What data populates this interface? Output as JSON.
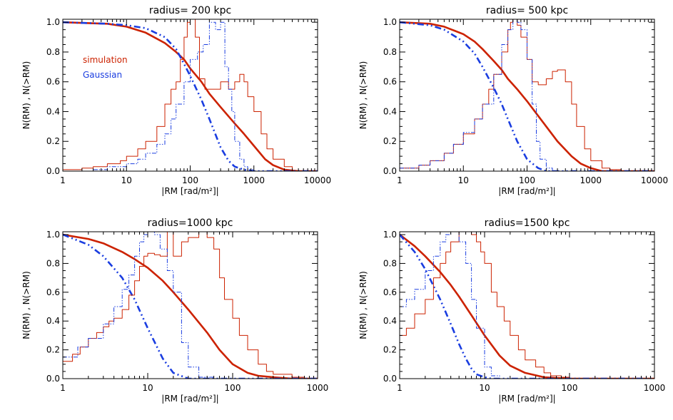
{
  "colors": {
    "simulation": "#cc2200",
    "gaussian": "#1a3de0",
    "axis": "#000000"
  },
  "legend": {
    "simulation": "simulation",
    "gaussian": "Gaussian"
  },
  "chart_data": [
    {
      "type": "line",
      "title": "radius= 200 kpc",
      "xlabel": "|RM [rad/m²]|",
      "ylabel": "N(RM) , N(>RM)",
      "xscale": "log",
      "xlim": [
        1,
        10000
      ],
      "ylim": [
        0,
        1.02
      ],
      "xticks": [
        1,
        10,
        100,
        1000,
        10000
      ],
      "xtick_labels": [
        "1",
        "10",
        "100",
        "1000",
        "10000"
      ],
      "yticks": [
        0,
        0.2,
        0.4,
        0.6,
        0.8,
        1.0
      ],
      "ytick_labels": [
        "0.0",
        "0.2",
        "0.4",
        "0.6",
        "0.8",
        "1.0"
      ],
      "legend_position": "left",
      "series": [
        {
          "name": "simulation cumulative",
          "style": "solid-thick",
          "color": "simulation",
          "x": [
            1,
            5,
            10,
            20,
            40,
            60,
            80,
            100,
            150,
            200,
            300,
            500,
            700,
            1000,
            1500,
            2000,
            3000,
            5000
          ],
          "y": [
            1.0,
            0.99,
            0.97,
            0.93,
            0.86,
            0.8,
            0.75,
            0.69,
            0.6,
            0.52,
            0.43,
            0.32,
            0.25,
            0.17,
            0.08,
            0.04,
            0.01,
            0.0
          ]
        },
        {
          "name": "gaussian cumulative",
          "style": "dashdot-thick",
          "color": "gaussian",
          "x": [
            1,
            5,
            10,
            20,
            40,
            60,
            80,
            100,
            150,
            200,
            300,
            400,
            500,
            700,
            1000
          ],
          "y": [
            1.0,
            0.99,
            0.98,
            0.96,
            0.9,
            0.82,
            0.72,
            0.64,
            0.48,
            0.35,
            0.16,
            0.07,
            0.03,
            0.01,
            0.0
          ]
        },
        {
          "name": "simulation histogram",
          "style": "step-thin",
          "color": "simulation",
          "x": [
            1,
            2,
            3,
            5,
            8,
            10,
            15,
            20,
            30,
            40,
            50,
            60,
            70,
            80,
            90,
            100,
            120,
            140,
            170,
            200,
            250,
            300,
            400,
            500,
            600,
            700,
            800,
            1000,
            1300,
            1600,
            2000,
            3000,
            4000
          ],
          "y": [
            0.01,
            0.02,
            0.03,
            0.05,
            0.07,
            0.1,
            0.15,
            0.2,
            0.3,
            0.45,
            0.55,
            0.6,
            0.75,
            0.9,
            1.0,
            1.02,
            0.9,
            0.62,
            0.55,
            0.55,
            0.55,
            0.6,
            0.55,
            0.6,
            0.65,
            0.6,
            0.5,
            0.4,
            0.25,
            0.15,
            0.08,
            0.03,
            0.0
          ]
        },
        {
          "name": "gaussian histogram",
          "style": "step-dashdot-thin",
          "color": "gaussian",
          "x": [
            1,
            3,
            5,
            10,
            15,
            20,
            30,
            40,
            50,
            60,
            80,
            100,
            130,
            160,
            200,
            250,
            300,
            350,
            400,
            450,
            500,
            600,
            700,
            800,
            1000
          ],
          "y": [
            0.0,
            0.01,
            0.03,
            0.05,
            0.08,
            0.12,
            0.18,
            0.25,
            0.35,
            0.45,
            0.6,
            0.75,
            0.8,
            0.85,
            1.0,
            0.95,
            1.0,
            0.7,
            0.55,
            0.4,
            0.2,
            0.08,
            0.03,
            0.01,
            0.0
          ]
        }
      ]
    },
    {
      "type": "line",
      "title": "radius= 500 kpc",
      "xlabel": "|RM [rad/m²]|",
      "ylabel": "N(RM) , N(>RM)",
      "xscale": "log",
      "xlim": [
        1,
        10000
      ],
      "ylim": [
        0,
        1.02
      ],
      "xticks": [
        1,
        10,
        100,
        1000,
        10000
      ],
      "xtick_labels": [
        "1",
        "10",
        "100",
        "1000",
        "10000"
      ],
      "yticks": [
        0,
        0.2,
        0.4,
        0.6,
        0.8,
        1.0
      ],
      "ytick_labels": [
        "0.0",
        "0.2",
        "0.4",
        "0.6",
        "0.8",
        "1.0"
      ],
      "series": [
        {
          "name": "simulation cumulative",
          "style": "solid-thick",
          "color": "simulation",
          "x": [
            1,
            3,
            5,
            10,
            15,
            20,
            30,
            40,
            50,
            70,
            100,
            150,
            200,
            300,
            500,
            700,
            1000,
            1500
          ],
          "y": [
            1.0,
            0.99,
            0.97,
            0.92,
            0.87,
            0.82,
            0.74,
            0.68,
            0.62,
            0.55,
            0.47,
            0.37,
            0.3,
            0.2,
            0.1,
            0.05,
            0.02,
            0.0
          ]
        },
        {
          "name": "gaussian cumulative",
          "style": "dashdot-thick",
          "color": "gaussian",
          "x": [
            1,
            3,
            5,
            10,
            15,
            20,
            30,
            40,
            50,
            70,
            100,
            150,
            200
          ],
          "y": [
            1.0,
            0.98,
            0.95,
            0.87,
            0.79,
            0.7,
            0.56,
            0.45,
            0.35,
            0.2,
            0.08,
            0.02,
            0.0
          ]
        },
        {
          "name": "simulation histogram",
          "style": "step-thin",
          "color": "simulation",
          "x": [
            1,
            2,
            3,
            5,
            7,
            10,
            15,
            20,
            25,
            30,
            40,
            50,
            55,
            60,
            70,
            80,
            100,
            120,
            150,
            200,
            250,
            300,
            400,
            500,
            600,
            800,
            1000,
            1500,
            2000,
            3000
          ],
          "y": [
            0.02,
            0.04,
            0.07,
            0.12,
            0.18,
            0.25,
            0.35,
            0.45,
            0.55,
            0.65,
            0.8,
            0.95,
            1.0,
            1.02,
            0.98,
            0.9,
            0.75,
            0.6,
            0.58,
            0.62,
            0.67,
            0.68,
            0.6,
            0.45,
            0.3,
            0.15,
            0.07,
            0.02,
            0.01,
            0.0
          ]
        },
        {
          "name": "gaussian histogram",
          "style": "step-dashdot-thin",
          "color": "gaussian",
          "x": [
            1,
            2,
            3,
            5,
            7,
            10,
            15,
            20,
            30,
            40,
            50,
            60,
            70,
            80,
            100,
            120,
            140,
            160,
            200,
            250
          ],
          "y": [
            0.02,
            0.04,
            0.07,
            0.12,
            0.18,
            0.26,
            0.35,
            0.45,
            0.65,
            0.85,
            0.95,
            1.02,
            1.0,
            0.95,
            0.75,
            0.45,
            0.2,
            0.08,
            0.02,
            0.0
          ]
        }
      ]
    },
    {
      "type": "line",
      "title": "radius=1000 kpc",
      "xlabel": "|RM [rad/m²]|",
      "ylabel": "N(RM) , N(>RM)",
      "xscale": "log",
      "xlim": [
        1,
        1000
      ],
      "ylim": [
        0,
        1.02
      ],
      "xticks": [
        1,
        10,
        100,
        1000
      ],
      "xtick_labels": [
        "1",
        "10",
        "100",
        "1000"
      ],
      "yticks": [
        0,
        0.2,
        0.4,
        0.6,
        0.8,
        1.0
      ],
      "ytick_labels": [
        "0.0",
        "0.2",
        "0.4",
        "0.6",
        "0.8",
        "1.0"
      ],
      "series": [
        {
          "name": "simulation cumulative",
          "style": "solid-thick",
          "color": "simulation",
          "x": [
            1,
            2,
            3,
            5,
            7,
            10,
            15,
            20,
            30,
            50,
            70,
            100,
            150,
            200,
            300,
            500,
            1000
          ],
          "y": [
            1.0,
            0.97,
            0.94,
            0.88,
            0.83,
            0.77,
            0.68,
            0.6,
            0.48,
            0.32,
            0.2,
            0.1,
            0.04,
            0.02,
            0.01,
            0.0,
            0.0
          ]
        },
        {
          "name": "gaussian cumulative",
          "style": "dashdot-thick",
          "color": "gaussian",
          "x": [
            1,
            2,
            3,
            5,
            7,
            10,
            15,
            20,
            30
          ],
          "y": [
            1.0,
            0.93,
            0.85,
            0.7,
            0.55,
            0.35,
            0.14,
            0.04,
            0.0
          ]
        },
        {
          "name": "simulation histogram",
          "style": "step-thin",
          "color": "simulation",
          "x": [
            1,
            1.3,
            1.6,
            2,
            2.5,
            3,
            3.5,
            4,
            5,
            6,
            7,
            8,
            9,
            10,
            12,
            14,
            17,
            20,
            25,
            30,
            40,
            50,
            60,
            70,
            80,
            100,
            120,
            150,
            200,
            250,
            300,
            500,
            700
          ],
          "y": [
            0.12,
            0.17,
            0.22,
            0.28,
            0.32,
            0.36,
            0.4,
            0.42,
            0.48,
            0.58,
            0.68,
            0.78,
            0.85,
            0.87,
            0.86,
            0.85,
            1.02,
            0.85,
            0.95,
            0.98,
            1.02,
            0.98,
            0.9,
            0.7,
            0.55,
            0.42,
            0.3,
            0.2,
            0.1,
            0.05,
            0.03,
            0.01,
            0.0
          ]
        },
        {
          "name": "gaussian histogram",
          "style": "step-dashdot-thin",
          "color": "gaussian",
          "x": [
            1,
            1.5,
            2,
            3,
            4,
            5,
            6,
            7,
            8,
            9,
            10,
            12,
            14,
            17,
            20,
            25,
            30,
            40,
            60
          ],
          "y": [
            0.15,
            0.22,
            0.28,
            0.38,
            0.5,
            0.62,
            0.72,
            0.85,
            0.95,
            1.0,
            1.02,
            1.0,
            0.9,
            0.75,
            0.6,
            0.25,
            0.08,
            0.01,
            0.0
          ]
        }
      ]
    },
    {
      "type": "line",
      "title": "radius=1500 kpc",
      "xlabel": "|RM [rad/m²]|",
      "ylabel": "N(RM) , N(>RM)",
      "xscale": "log",
      "xlim": [
        1,
        1000
      ],
      "ylim": [
        0,
        1.02
      ],
      "xticks": [
        1,
        10,
        100,
        1000
      ],
      "xtick_labels": [
        "1",
        "10",
        "100",
        "1000"
      ],
      "yticks": [
        0,
        0.2,
        0.4,
        0.6,
        0.8,
        1.0
      ],
      "ytick_labels": [
        "0.0",
        "0.2",
        "0.4",
        "0.6",
        "0.8",
        "1.0"
      ],
      "series": [
        {
          "name": "simulation cumulative",
          "style": "solid-thick",
          "color": "simulation",
          "x": [
            1,
            1.5,
            2,
            3,
            4,
            5,
            7,
            10,
            15,
            20,
            30,
            50,
            70,
            100,
            200
          ],
          "y": [
            1.0,
            0.92,
            0.85,
            0.74,
            0.65,
            0.57,
            0.44,
            0.3,
            0.16,
            0.09,
            0.04,
            0.01,
            0.005,
            0.0,
            0.0
          ]
        },
        {
          "name": "gaussian cumulative",
          "style": "dashdot-thick",
          "color": "gaussian",
          "x": [
            1,
            1.5,
            2,
            3,
            4,
            5,
            6,
            7,
            8,
            10,
            12
          ],
          "y": [
            1.0,
            0.88,
            0.76,
            0.55,
            0.38,
            0.24,
            0.14,
            0.07,
            0.03,
            0.01,
            0.0
          ]
        },
        {
          "name": "simulation histogram",
          "style": "step-thin",
          "color": "simulation",
          "x": [
            1,
            1.2,
            1.5,
            2,
            2.5,
            3,
            3.5,
            4,
            5,
            6,
            7,
            8,
            9,
            10,
            12,
            14,
            17,
            20,
            25,
            30,
            40,
            50,
            60,
            80,
            100,
            150
          ],
          "y": [
            0.3,
            0.35,
            0.45,
            0.55,
            0.7,
            0.8,
            0.88,
            0.95,
            1.02,
            1.02,
            1.0,
            0.95,
            0.88,
            0.8,
            0.6,
            0.5,
            0.4,
            0.3,
            0.2,
            0.13,
            0.08,
            0.04,
            0.02,
            0.01,
            0.0,
            0.0
          ]
        },
        {
          "name": "gaussian histogram",
          "style": "step-dashdot-thin",
          "color": "gaussian",
          "x": [
            1,
            1.2,
            1.5,
            2,
            2.5,
            3,
            3.5,
            4,
            5,
            6,
            7,
            8,
            10,
            12,
            15
          ],
          "y": [
            0.5,
            0.55,
            0.62,
            0.75,
            0.85,
            0.95,
            1.0,
            1.02,
            0.95,
            0.8,
            0.55,
            0.35,
            0.08,
            0.02,
            0.0
          ]
        }
      ]
    }
  ]
}
